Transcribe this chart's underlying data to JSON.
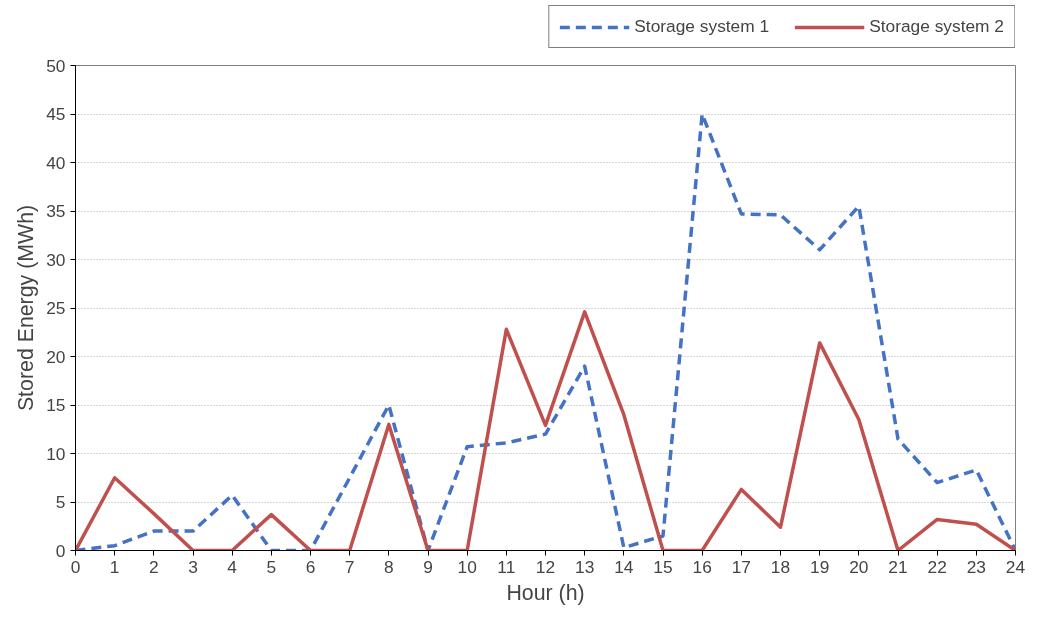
{
  "chart_data": {
    "type": "line",
    "xlabel": "Hour (h)",
    "ylabel": "Stored Energy (MWh)",
    "x": [
      0,
      1,
      2,
      3,
      4,
      5,
      6,
      7,
      8,
      9,
      10,
      11,
      12,
      13,
      14,
      15,
      16,
      17,
      18,
      19,
      20,
      21,
      22,
      23,
      24
    ],
    "series": [
      {
        "name": "Storage system 1",
        "color": "#4472c4",
        "line_style": "dashed",
        "values": [
          0,
          0.5,
          2,
          2,
          5.7,
          0,
          0,
          7.5,
          15,
          0,
          10.7,
          11.1,
          12,
          19,
          0.3,
          1.5,
          45,
          34.7,
          34.6,
          31,
          35.5,
          11.5,
          7,
          8.3,
          0
        ]
      },
      {
        "name": "Storage system 2",
        "color": "#c0504d",
        "line_style": "solid",
        "values": [
          0,
          7.5,
          3.8,
          0,
          0,
          3.7,
          0,
          0,
          13,
          0,
          0,
          22.8,
          12.9,
          24.6,
          14,
          0,
          0,
          6.3,
          2.4,
          21.4,
          13.5,
          0,
          3.2,
          2.7,
          0
        ]
      }
    ],
    "xlim": [
      0,
      24
    ],
    "xticks": [
      0,
      1,
      2,
      3,
      4,
      5,
      6,
      7,
      8,
      9,
      10,
      11,
      12,
      13,
      14,
      15,
      16,
      17,
      18,
      19,
      20,
      21,
      22,
      23,
      24
    ],
    "ylim": [
      0,
      50
    ],
    "yticks": [
      0,
      5,
      10,
      15,
      20,
      25,
      30,
      35,
      40,
      45,
      50
    ],
    "grid": "y",
    "legend": "top right",
    "marker": "none"
  }
}
